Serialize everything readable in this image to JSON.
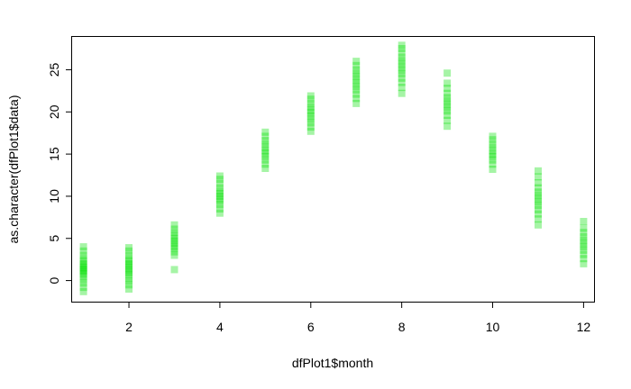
{
  "chart_data": {
    "type": "scatter",
    "title": "",
    "xlabel": "dfPlot1$month",
    "ylabel": "as.character(dfPlot1$data)",
    "xlim": [
      0.75,
      12.25
    ],
    "ylim": [
      -2.5,
      29
    ],
    "x_ticks": [
      2,
      4,
      6,
      8,
      10,
      12
    ],
    "y_ticks": [
      0,
      5,
      10,
      15,
      20,
      25
    ],
    "grid": false,
    "legend": "none",
    "point_color": "#00e000",
    "point_opacity": 0.35,
    "series": [
      {
        "x": 1,
        "values": [
          -1.3,
          -0.8,
          -0.3,
          0.1,
          0.5,
          0.8,
          1.0,
          1.2,
          1.4,
          1.6,
          1.8,
          2.0,
          2.3,
          2.6,
          3.0,
          3.5,
          4.0
        ]
      },
      {
        "x": 2,
        "values": [
          -1.0,
          -0.5,
          -0.1,
          0.3,
          0.7,
          1.0,
          1.2,
          1.5,
          1.8,
          2.0,
          2.3,
          2.6,
          3.0,
          3.5,
          3.9
        ]
      },
      {
        "x": 3,
        "values": [
          1.3,
          3.0,
          3.4,
          3.8,
          4.1,
          4.4,
          4.7,
          5.0,
          5.3,
          5.7,
          6.1,
          6.6
        ]
      },
      {
        "x": 4,
        "values": [
          8.0,
          8.5,
          9.0,
          9.4,
          9.7,
          10.0,
          10.3,
          10.6,
          11.0,
          11.5,
          12.0,
          12.4
        ]
      },
      {
        "x": 5,
        "values": [
          13.3,
          13.8,
          14.3,
          14.7,
          15.1,
          15.4,
          15.8,
          16.2,
          16.6,
          17.1,
          17.6
        ]
      },
      {
        "x": 6,
        "values": [
          17.7,
          18.2,
          18.7,
          19.1,
          19.5,
          19.9,
          20.2,
          20.6,
          21.0,
          21.5,
          21.9
        ]
      },
      {
        "x": 7,
        "values": [
          21.0,
          21.6,
          22.1,
          22.6,
          23.0,
          23.4,
          23.8,
          24.2,
          24.6,
          25.0,
          25.5,
          26.0
        ]
      },
      {
        "x": 8,
        "values": [
          22.2,
          22.9,
          23.5,
          24.0,
          24.5,
          24.9,
          25.3,
          25.7,
          26.1,
          26.5,
          27.0,
          27.5,
          27.9
        ]
      },
      {
        "x": 9,
        "values": [
          18.3,
          19.0,
          19.6,
          20.1,
          20.5,
          20.9,
          21.3,
          21.7,
          22.2,
          22.8,
          23.4,
          24.6
        ]
      },
      {
        "x": 10,
        "values": [
          13.2,
          13.8,
          14.3,
          14.7,
          15.0,
          15.4,
          15.8,
          16.2,
          16.7,
          17.1
        ]
      },
      {
        "x": 11,
        "values": [
          6.6,
          7.3,
          7.9,
          8.4,
          8.9,
          9.3,
          9.7,
          10.1,
          10.5,
          11.0,
          11.6,
          12.3,
          13.0
        ]
      },
      {
        "x": 12,
        "values": [
          2.0,
          2.6,
          3.1,
          3.6,
          4.0,
          4.4,
          4.8,
          5.2,
          5.7,
          6.2,
          7.0
        ]
      }
    ]
  }
}
